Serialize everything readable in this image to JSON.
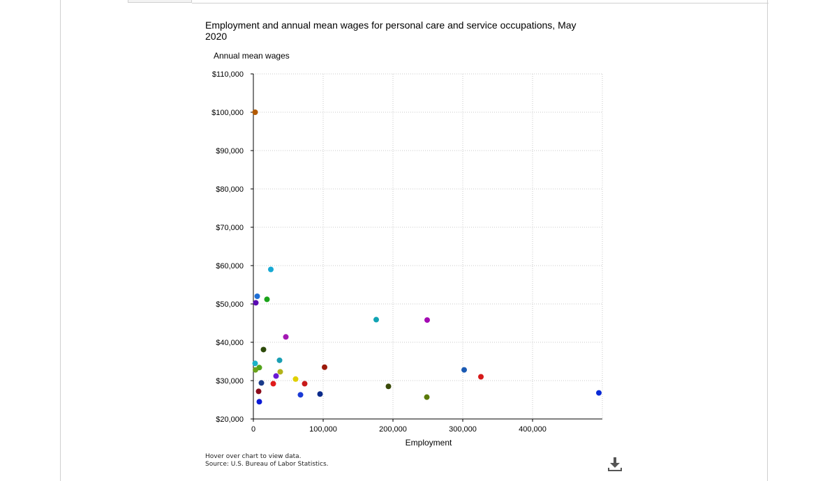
{
  "chart_data": {
    "type": "scatter",
    "title": "Employment and annual mean wages for personal care and service occupations, May 2020",
    "xlabel": "Employment",
    "ylabel": "Annual mean wages",
    "xlim": [
      0,
      500000
    ],
    "ylim": [
      20000,
      110000
    ],
    "x_ticks": [
      0,
      100000,
      200000,
      300000,
      400000
    ],
    "x_tick_labels": [
      "0",
      "100,000",
      "200,000",
      "300,000",
      "400,000"
    ],
    "y_ticks": [
      20000,
      30000,
      40000,
      50000,
      60000,
      70000,
      80000,
      90000,
      100000,
      110000
    ],
    "y_tick_labels": [
      "$20,000",
      "$30,000",
      "$40,000",
      "$50,000",
      "$60,000",
      "$70,000",
      "$80,000",
      "$90,000",
      "$100,000",
      "$110,000"
    ],
    "grid": true,
    "legend": "none",
    "points": [
      {
        "x": 2500,
        "y": 100000,
        "color": "#b35a00"
      },
      {
        "x": 25000,
        "y": 59000,
        "color": "#17a9d4"
      },
      {
        "x": 5500,
        "y": 52000,
        "color": "#1f6fd6"
      },
      {
        "x": 19500,
        "y": 51200,
        "color": "#1aa31a"
      },
      {
        "x": 3500,
        "y": 50300,
        "color": "#5a0ab3"
      },
      {
        "x": 176000,
        "y": 45900,
        "color": "#11a3b3"
      },
      {
        "x": 249000,
        "y": 45800,
        "color": "#a30ab3"
      },
      {
        "x": 46500,
        "y": 41400,
        "color": "#a318b3"
      },
      {
        "x": 14500,
        "y": 38100,
        "color": "#2d4a0a"
      },
      {
        "x": 37500,
        "y": 35300,
        "color": "#1a9fb3"
      },
      {
        "x": 2500,
        "y": 34500,
        "color": "#1ab3c8"
      },
      {
        "x": 8500,
        "y": 33400,
        "color": "#52a31a"
      },
      {
        "x": 3000,
        "y": 32800,
        "color": "#6aa31a"
      },
      {
        "x": 102000,
        "y": 33500,
        "color": "#9c1a0a"
      },
      {
        "x": 302000,
        "y": 32800,
        "color": "#1a5ab3"
      },
      {
        "x": 38500,
        "y": 32300,
        "color": "#b3b31a"
      },
      {
        "x": 32500,
        "y": 31200,
        "color": "#6a1ad6"
      },
      {
        "x": 326000,
        "y": 31000,
        "color": "#d61a1a"
      },
      {
        "x": 60500,
        "y": 30400,
        "color": "#e0d000"
      },
      {
        "x": 11500,
        "y": 29400,
        "color": "#1a3a8a"
      },
      {
        "x": 28500,
        "y": 29200,
        "color": "#e01a1a"
      },
      {
        "x": 73500,
        "y": 29200,
        "color": "#c81a1a"
      },
      {
        "x": 193500,
        "y": 28500,
        "color": "#3a4a0a"
      },
      {
        "x": 7500,
        "y": 27200,
        "color": "#8a0a1a"
      },
      {
        "x": 495000,
        "y": 26800,
        "color": "#0a2ad6"
      },
      {
        "x": 95500,
        "y": 26500,
        "color": "#0a2a8a"
      },
      {
        "x": 67500,
        "y": 26300,
        "color": "#1a3ad6"
      },
      {
        "x": 248500,
        "y": 25700,
        "color": "#5a7a0a"
      },
      {
        "x": 8500,
        "y": 24500,
        "color": "#0a1ad6"
      }
    ]
  },
  "notes": {
    "hover": "Hover over chart to view data.",
    "source": "Source: U.S. Bureau of Labor Statistics."
  },
  "icons": {
    "download": "download-icon"
  }
}
